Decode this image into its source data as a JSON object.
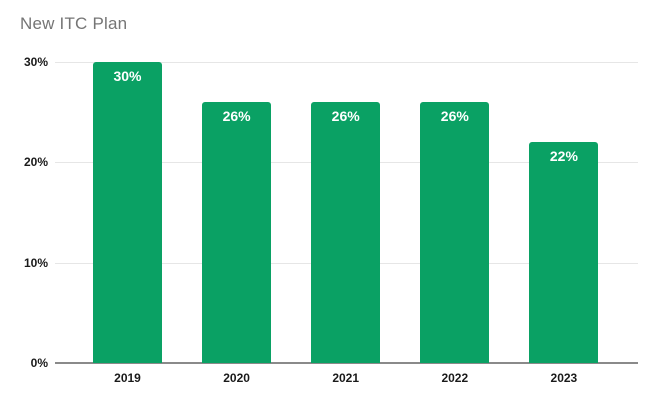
{
  "chart_data": {
    "type": "bar",
    "title": "New ITC Plan",
    "categories": [
      "2019",
      "2020",
      "2021",
      "2022",
      "2023"
    ],
    "values": [
      30,
      26,
      26,
      26,
      22
    ],
    "value_labels": [
      "30%",
      "26%",
      "26%",
      "26%",
      "22%"
    ],
    "xlabel": "",
    "ylabel": "",
    "ylim": [
      0,
      30
    ],
    "yticks": [
      0,
      10,
      20,
      30
    ],
    "ytick_labels": [
      "0%",
      "10%",
      "20%",
      "30%"
    ],
    "grid": true,
    "legend": false,
    "colors": {
      "bar": "#0aa164",
      "bar_value_label": "#ffffff",
      "gridline": "#e6e6e6",
      "axis_line": "#8a8a8a",
      "tick_label": "#1a1a1a",
      "title": "#757575",
      "background": "#ffffff"
    }
  }
}
